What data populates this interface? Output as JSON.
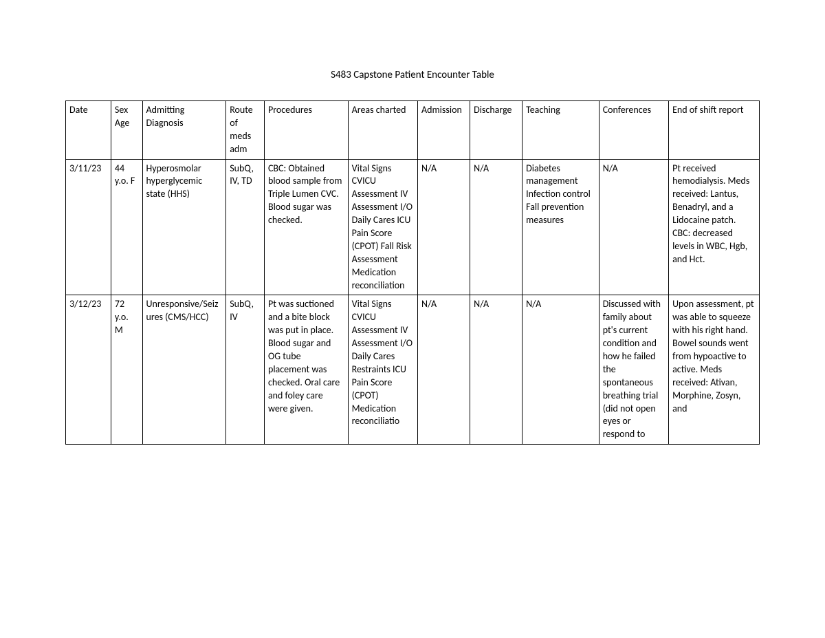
{
  "title": "S483 Capstone Patient Encounter Table",
  "table": {
    "columns": [
      "Date",
      "Sex Age",
      "Admitting Diagnosis",
      "Route of meds adm",
      "Procedures",
      "Areas charted",
      "Admission",
      "Discharge",
      "Teaching",
      "Conferences",
      "End of shift report"
    ],
    "rows": [
      {
        "date": "3/11/23",
        "sex_age": "44 y.o. F",
        "diagnosis": "Hyperosmolar hyperglycemic state (HHS)",
        "route": "SubQ, IV, TD",
        "procedures": "CBC: Obtained blood sample from Triple Lumen CVC. Blood sugar was checked.",
        "areas": "Vital Signs CVICU Assessment IV Assessment I/O Daily Cares ICU Pain Score (CPOT) Fall Risk Assessment Medication reconciliation",
        "admission": "N/A",
        "discharge": "N/A",
        "teaching": "Diabetes management Infection control Fall prevention measures",
        "conferences": "N/A",
        "report": "Pt received hemodialysis. Meds received: Lantus, Benadryl, and a Lidocaine patch. CBC: decreased levels in WBC, Hgb, and Hct."
      },
      {
        "date": "3/12/23",
        "sex_age": "72 y.o. M",
        "diagnosis": "Unresponsive/Seizures (CMS/HCC)",
        "route": "SubQ, IV",
        "procedures": "Pt was suctioned and a bite block was put in place. Blood sugar and OG tube placement was checked. Oral care and foley care were given.",
        "areas": "Vital Signs CVICU Assessment IV Assessment I/O Daily Cares Restraints ICU Pain Score (CPOT) Medication reconciliatio",
        "admission": "N/A",
        "discharge": "N/A",
        "teaching": "N/A",
        "conferences": "Discussed with family about pt's current condition and how he failed the spontaneous breathing trial (did not open eyes or respond to",
        "report": "Upon assessment, pt was able to squeeze with his right hand. Bowel sounds went from hypoactive to active. Meds received: Ativan, Morphine, Zosyn, and"
      }
    ],
    "border_color": "#000000",
    "background_color": "#ffffff",
    "text_color": "#000000",
    "font_size": 14,
    "title_font_size": 15
  }
}
